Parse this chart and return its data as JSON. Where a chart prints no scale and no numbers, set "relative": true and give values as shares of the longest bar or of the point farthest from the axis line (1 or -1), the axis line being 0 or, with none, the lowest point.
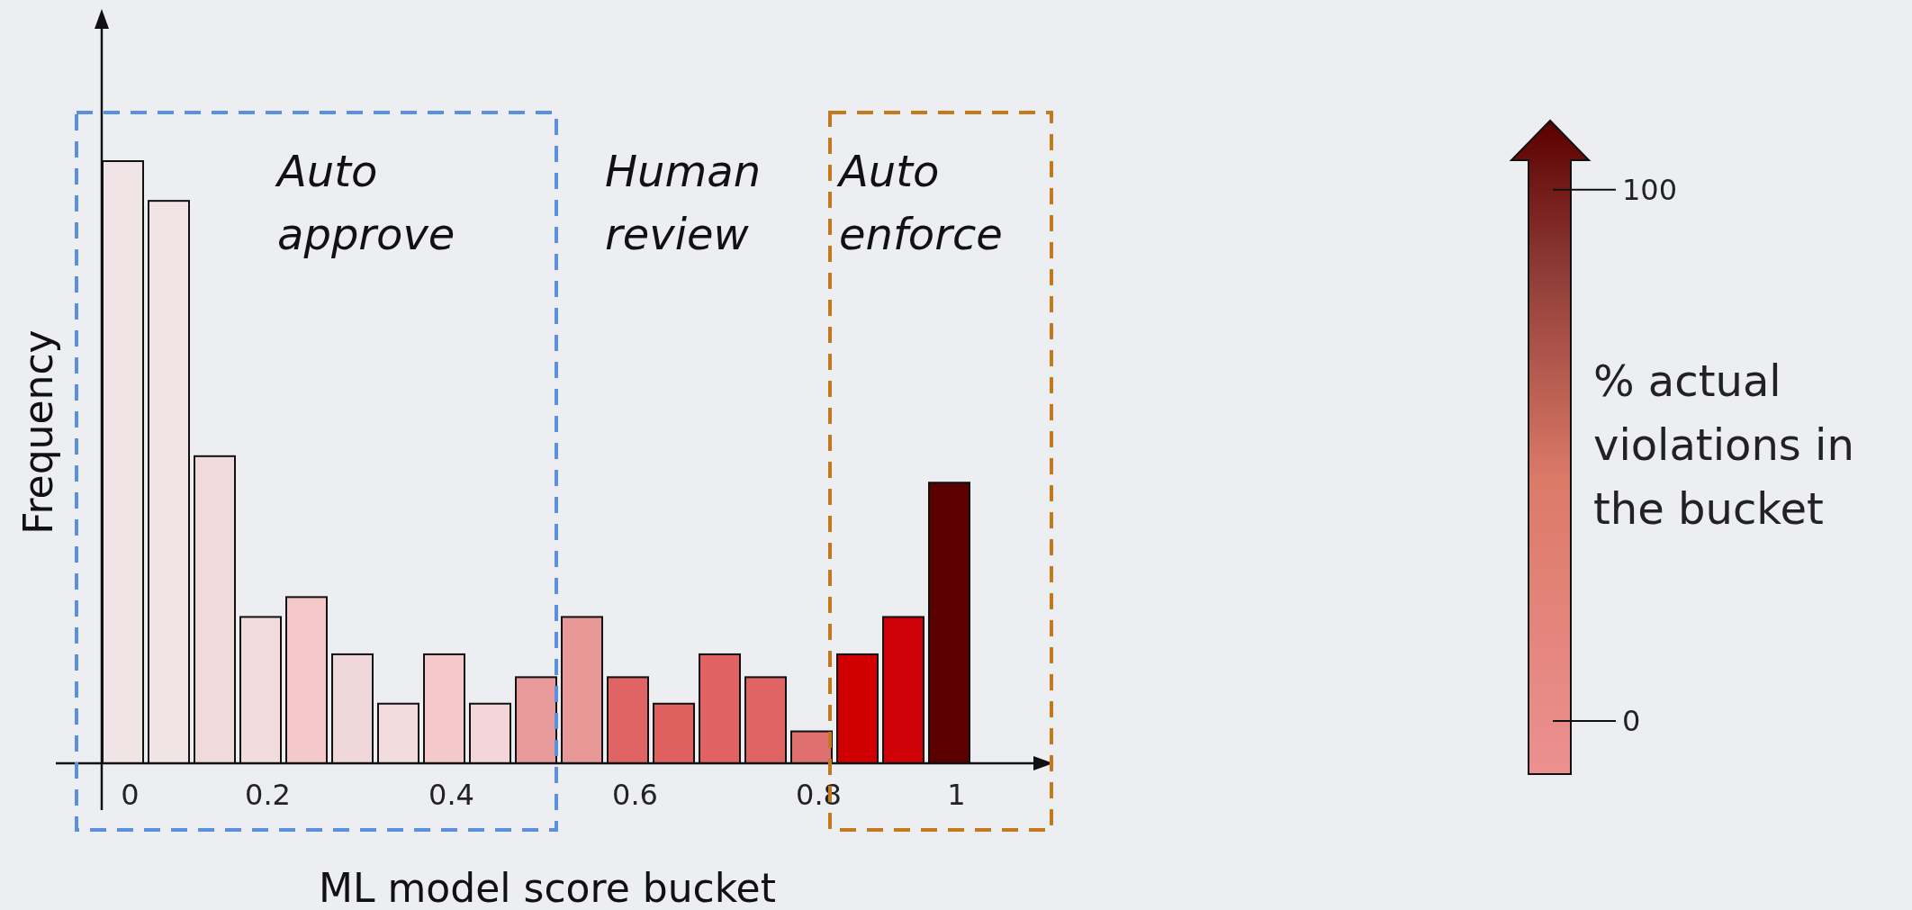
{
  "chart_data": {
    "type": "bar",
    "relative": true,
    "xlabel": "ML model score bucket",
    "ylabel": "Frequency",
    "clabel": "% actual violations in the bucket",
    "clim": [
      -10,
      113
    ],
    "cticks": [
      0,
      100
    ],
    "categories": [
      "0",
      null,
      null,
      "0.2",
      null,
      null,
      null,
      "0.4",
      null,
      null,
      null,
      "0.6",
      null,
      null,
      null,
      "0.8",
      null,
      null,
      "1"
    ],
    "values": [
      1,
      0.934,
      0.51,
      0.243,
      0.276,
      0.181,
      0.099,
      0.181,
      0.099,
      0.143,
      0.243,
      0.143,
      0.099,
      0.181,
      0.143,
      0.053,
      0.181,
      0.243,
      0.466
    ],
    "colors": [
      "#f1e4e6",
      "#f1e4e6",
      "#f0dadc",
      "#f2dcdd",
      "#f5c8c9",
      "#f0d8da",
      "#f2dcde",
      "#f5c8ca",
      "#f3d6d8",
      "#e89a9a",
      "#e99898",
      "#e06464",
      "#e06060",
      "#e06262",
      "#e06464",
      "#e07070",
      "#d00000",
      "#d00008",
      "#5a0000"
    ],
    "annotations": [
      "Auto approve",
      "Human review",
      "Auto enforce"
    ]
  }
}
